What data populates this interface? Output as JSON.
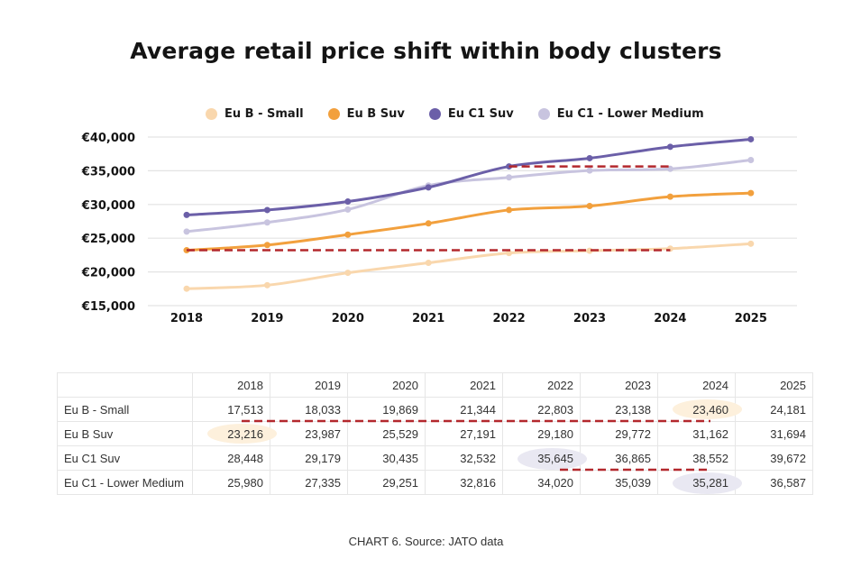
{
  "chart_data": {
    "type": "line",
    "title": "Average retail price shift within body clusters",
    "xlabel": "",
    "ylabel": "",
    "x": [
      "2018",
      "2019",
      "2020",
      "2021",
      "2022",
      "2023",
      "2024",
      "2025"
    ],
    "ylim": [
      15000,
      40000
    ],
    "yticks": [
      15000,
      20000,
      25000,
      30000,
      35000,
      40000
    ],
    "ytick_labels": [
      "€15,000",
      "€20,000",
      "€25,000",
      "€30,000",
      "€35,000",
      "€40,000"
    ],
    "grid": true,
    "legend_position": "top",
    "series": [
      {
        "name": "Eu B - Small",
        "color": "#f9d7ad",
        "values": [
          17513,
          18033,
          19869,
          21344,
          22803,
          23138,
          23460,
          24181
        ]
      },
      {
        "name": "Eu B Suv",
        "color": "#f2a03d",
        "values": [
          23216,
          23987,
          25529,
          27191,
          29180,
          29772,
          31162,
          31694
        ]
      },
      {
        "name": "Eu C1 Suv",
        "color": "#6b5fa8",
        "values": [
          28448,
          29179,
          30435,
          32532,
          35645,
          36865,
          38552,
          39672
        ]
      },
      {
        "name": "Eu C1 - Lower Medium",
        "color": "#c8c4df",
        "values": [
          25980,
          27335,
          29251,
          32816,
          34020,
          35039,
          35281,
          36587
        ]
      }
    ],
    "annotations": [
      {
        "type": "dashed-line",
        "color": "#b3282d",
        "from": {
          "x": "2018",
          "y": 23216
        },
        "to": {
          "x": "2024",
          "y": 23460
        },
        "note": "Eu B Suv 2018 ≈ Eu B - Small 2024"
      },
      {
        "type": "dashed-line",
        "color": "#b3282d",
        "from": {
          "x": "2022",
          "y": 35645
        },
        "to": {
          "x": "2024",
          "y": 35281
        },
        "note": "Eu C1 Suv 2022 ≈ Eu C1 - Lower Medium 2024"
      }
    ]
  },
  "table": {
    "columns": [
      "",
      "2018",
      "2019",
      "2020",
      "2021",
      "2022",
      "2023",
      "2024",
      "2025"
    ],
    "rows": [
      {
        "label": "Eu B - Small",
        "cells": [
          "17,513",
          "18,033",
          "19,869",
          "21,344",
          "22,803",
          "23,138",
          "23,460",
          "24,181"
        ]
      },
      {
        "label": "Eu B Suv",
        "cells": [
          "23,216",
          "23,987",
          "25,529",
          "27,191",
          "29,180",
          "29,772",
          "31,162",
          "31,694"
        ]
      },
      {
        "label": "Eu C1 Suv",
        "cells": [
          "28,448",
          "29,179",
          "30,435",
          "32,532",
          "35,645",
          "36,865",
          "38,552",
          "39,672"
        ]
      },
      {
        "label": "Eu C1 - Lower Medium",
        "cells": [
          "25,980",
          "27,335",
          "29,251",
          "32,816",
          "34,020",
          "35,039",
          "35,281",
          "36,587"
        ]
      }
    ],
    "highlights": [
      {
        "row": 0,
        "col": 6,
        "color": "#fdf0dc"
      },
      {
        "row": 1,
        "col": 0,
        "color": "#fdf0dc"
      },
      {
        "row": 2,
        "col": 4,
        "color": "#e9e8f2"
      },
      {
        "row": 3,
        "col": 6,
        "color": "#e9e8f2"
      }
    ]
  },
  "caption": "CHART 6. Source: JATO data"
}
